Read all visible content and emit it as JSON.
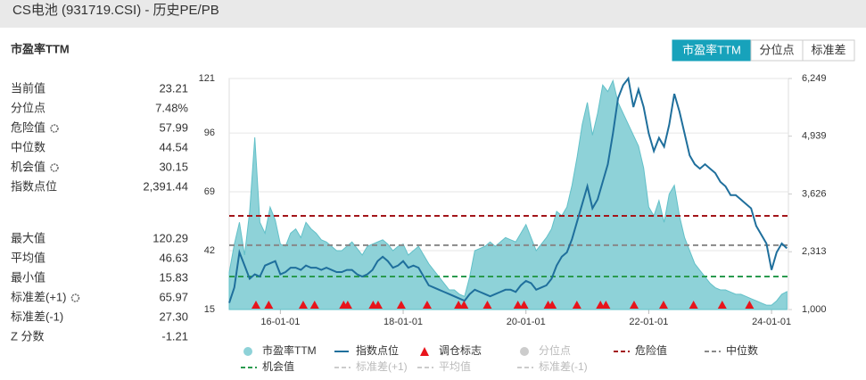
{
  "header": {
    "title": "CS电池 (931719.CSI) - 历史PE/PB"
  },
  "buttons": [
    {
      "label": "市盈率TTM",
      "active": true
    },
    {
      "label": "分位点",
      "active": false
    },
    {
      "label": "标准差",
      "active": false
    }
  ],
  "stats": [
    {
      "label": "当前值",
      "value": "23.21",
      "settings_icon": false
    },
    {
      "label": "分位点",
      "value": "7.48%",
      "settings_icon": false
    },
    {
      "label": "危险值",
      "value": "57.99",
      "settings_icon": true
    },
    {
      "label": "中位数",
      "value": "44.54",
      "settings_icon": false
    },
    {
      "label": "机会值",
      "value": "30.15",
      "settings_icon": true
    },
    {
      "label": "指数点位",
      "value": "2,391.44",
      "settings_icon": false
    },
    {
      "label": "最大值",
      "value": "120.29",
      "settings_icon": false
    },
    {
      "label": "平均值",
      "value": "46.63",
      "settings_icon": false
    },
    {
      "label": "最小值",
      "value": "15.83",
      "settings_icon": false
    },
    {
      "label": "标准差(+1)",
      "value": "65.97",
      "settings_icon": true
    },
    {
      "label": "标准差(-1)",
      "value": "27.30",
      "settings_icon": false
    },
    {
      "label": "Z 分数",
      "value": "-1.21",
      "settings_icon": false
    }
  ],
  "chart_data": {
    "type": "area-line",
    "title": "市盈率TTM",
    "x": [
      "15-03-01",
      "15-04-01",
      "15-05-01",
      "15-06-01",
      "15-07-01",
      "15-08-01",
      "15-09-01",
      "15-10-01",
      "15-11-01",
      "15-12-01",
      "16-01-01",
      "16-02-01",
      "16-03-01",
      "16-04-01",
      "16-05-01",
      "16-06-01",
      "16-07-01",
      "16-08-01",
      "16-09-01",
      "16-10-01",
      "16-11-01",
      "16-12-01",
      "17-01-01",
      "17-02-01",
      "17-03-01",
      "17-04-01",
      "17-05-01",
      "17-06-01",
      "17-07-01",
      "17-08-01",
      "17-09-01",
      "17-10-01",
      "17-11-01",
      "17-12-01",
      "18-01-01",
      "18-02-01",
      "18-03-01",
      "18-04-01",
      "18-05-01",
      "18-06-01",
      "18-07-01",
      "18-08-01",
      "18-09-01",
      "18-10-01",
      "18-11-01",
      "18-12-01",
      "19-01-01",
      "19-02-01",
      "19-03-01",
      "19-04-01",
      "19-05-01",
      "19-06-01",
      "19-07-01",
      "19-08-01",
      "19-09-01",
      "19-10-01",
      "19-11-01",
      "19-12-01",
      "20-01-01",
      "20-02-01",
      "20-03-01",
      "20-04-01",
      "20-05-01",
      "20-06-01",
      "20-07-01",
      "20-08-01",
      "20-09-01",
      "20-10-01",
      "20-11-01",
      "20-12-01",
      "21-01-01",
      "21-02-01",
      "21-03-01",
      "21-04-01",
      "21-05-01",
      "21-06-01",
      "21-07-01",
      "21-08-01",
      "21-09-01",
      "21-10-01",
      "21-11-01",
      "21-12-01",
      "22-01-01",
      "22-02-01",
      "22-03-01",
      "22-04-01",
      "22-05-01",
      "22-06-01",
      "22-07-01",
      "22-08-01",
      "22-09-01",
      "22-10-01",
      "22-11-01",
      "22-12-01",
      "23-01-01",
      "23-02-01",
      "23-03-01",
      "23-04-01",
      "23-05-01",
      "23-06-01",
      "23-07-01",
      "23-08-01",
      "23-09-01",
      "23-10-01",
      "23-11-01",
      "23-12-01",
      "24-01-01",
      "24-02-01",
      "24-03-01",
      "24-04-01"
    ],
    "xlim": [
      "15-03-01",
      "24-04-10"
    ],
    "xticks": [
      "16-01-01",
      "18-01-01",
      "20-01-01",
      "22-01-01",
      "24-01-01"
    ],
    "ylim": [
      15,
      121
    ],
    "yticks": [
      15,
      42,
      69,
      96,
      121
    ],
    "y2lim": [
      1000,
      6249
    ],
    "y2ticks": [
      {
        "value": 1000,
        "label": "1,000"
      },
      {
        "value": 2313,
        "label": "2,313"
      },
      {
        "value": 3626,
        "label": "3,626"
      },
      {
        "value": 4939,
        "label": "4,939"
      },
      {
        "value": 6249,
        "label": "6,249"
      }
    ],
    "grid": true,
    "series": [
      {
        "name": "市盈率TTM",
        "color": "#8ed2d8",
        "stroke": "#62c0c8",
        "values": [
          32,
          45,
          55,
          40,
          60,
          94,
          55,
          50,
          62,
          56,
          45,
          44,
          50,
          52,
          48,
          55,
          52,
          50,
          47,
          46,
          44,
          42,
          42,
          44,
          46,
          43,
          40,
          44,
          45,
          46,
          47,
          45,
          42,
          44,
          45,
          40,
          42,
          44,
          40,
          36,
          33,
          30,
          27,
          24,
          24,
          22,
          21,
          30,
          42,
          43,
          44,
          46,
          44,
          46,
          48,
          47,
          46,
          50,
          54,
          48,
          42,
          45,
          48,
          52,
          60,
          58,
          62,
          72,
          85,
          100,
          110,
          95,
          105,
          118,
          115,
          120,
          110,
          105,
          100,
          95,
          90,
          80,
          62,
          58,
          65,
          55,
          68,
          72,
          58,
          48,
          42,
          36,
          33,
          30,
          27,
          25,
          24,
          24,
          23,
          22,
          22,
          21,
          20,
          19,
          18,
          17,
          17,
          19,
          22,
          23.21
        ]
      },
      {
        "name": "指数点位",
        "color": "#1f6f9c",
        "axis": "y2",
        "values": [
          1150,
          1500,
          2300,
          2000,
          1700,
          1800,
          1750,
          2000,
          2050,
          2100,
          1800,
          1850,
          1950,
          1950,
          1900,
          2000,
          1950,
          1950,
          1900,
          1950,
          1900,
          1850,
          1850,
          1900,
          1900,
          1800,
          1750,
          1800,
          1900,
          2100,
          2200,
          2100,
          1950,
          2000,
          2100,
          1950,
          2000,
          1950,
          1750,
          1550,
          1500,
          1450,
          1400,
          1350,
          1300,
          1250,
          1200,
          1350,
          1450,
          1400,
          1350,
          1300,
          1350,
          1400,
          1450,
          1450,
          1400,
          1550,
          1650,
          1600,
          1450,
          1500,
          1550,
          1700,
          2000,
          2200,
          2300,
          2600,
          3000,
          3400,
          3800,
          3300,
          3500,
          3900,
          4300,
          5000,
          5800,
          6100,
          6249,
          5600,
          6000,
          5600,
          5000,
          4600,
          4900,
          4700,
          5200,
          5900,
          5500,
          5000,
          4500,
          4300,
          4200,
          4300,
          4200,
          4100,
          3900,
          3800,
          3600,
          3600,
          3500,
          3400,
          3300,
          2900,
          2700,
          2500,
          1900,
          2300,
          2500,
          2391.44
        ]
      }
    ],
    "rebalance": {
      "name": "调仓标志",
      "color": "#e8141b",
      "dates": [
        "15-08-08",
        "15-10-23",
        "16-05-15",
        "16-07-22",
        "17-01-12",
        "17-02-06",
        "17-07-05",
        "17-08-04",
        "17-12-20",
        "18-05-22",
        "18-11-26",
        "18-12-28",
        "19-05-15",
        "19-11-14",
        "19-12-20",
        "20-05-11",
        "20-06-05",
        "20-10-30",
        "21-03-18",
        "21-04-20",
        "21-10-05",
        "22-03-28",
        "22-09-24",
        "23-03-12",
        "23-08-22"
      ]
    },
    "ref_lines": [
      {
        "name": "危险值",
        "value": 57.99,
        "color": "#a3161a"
      },
      {
        "name": "中位数",
        "value": 44.54,
        "color": "#888888"
      },
      {
        "name": "机会值",
        "value": 30.15,
        "color": "#2a9a4e"
      }
    ],
    "inactive_legend": [
      {
        "name": "分位点",
        "symbol": "circle"
      },
      {
        "name": "标准差(+1)",
        "symbol": "dash"
      },
      {
        "name": "平均值",
        "symbol": "dash"
      },
      {
        "name": "标准差(-1)",
        "symbol": "dash"
      }
    ]
  }
}
